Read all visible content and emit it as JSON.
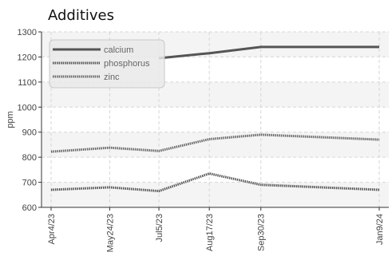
{
  "chart_data": {
    "type": "line",
    "title": "Additives",
    "ylabel": "ppm",
    "xlabel": "",
    "x": [
      "Apr4/23",
      "May24/23",
      "Jul5/23",
      "Aug17/23",
      "Sep30/23",
      "Jan9/24"
    ],
    "x_days": [
      0,
      50,
      92,
      135,
      179,
      280
    ],
    "ylim": [
      600,
      1300
    ],
    "yticks": [
      600,
      700,
      800,
      900,
      1000,
      1100,
      1200,
      1300
    ],
    "grid": true,
    "legend_position": "top-left",
    "series": [
      {
        "name": "calcium",
        "color": "#555555",
        "style": "solid",
        "values": [
          null,
          null,
          1195,
          1215,
          1240,
          1240
        ]
      },
      {
        "name": "phosphorus",
        "color": "#555555",
        "style": "dotted",
        "values": [
          670,
          680,
          665,
          735,
          690,
          670
        ]
      },
      {
        "name": "zinc",
        "color": "#666666",
        "style": "dotted",
        "values": [
          822,
          838,
          825,
          872,
          890,
          870
        ]
      }
    ]
  }
}
